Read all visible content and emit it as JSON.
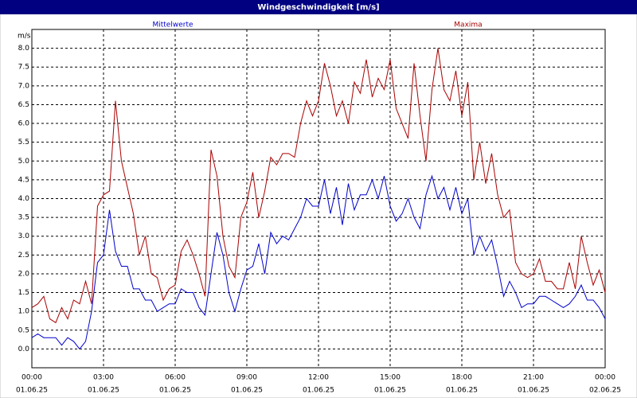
{
  "chart_data": {
    "type": "line",
    "title": "Windgeschwindigkeit [m/s]",
    "y_unit": "m/s",
    "x": [
      0,
      0.25,
      0.5,
      0.75,
      1,
      1.25,
      1.5,
      1.75,
      2,
      2.25,
      2.5,
      2.75,
      3,
      3.25,
      3.5,
      3.75,
      4,
      4.25,
      4.5,
      4.75,
      5,
      5.25,
      5.5,
      5.75,
      6,
      6.25,
      6.5,
      6.75,
      7,
      7.25,
      7.5,
      7.75,
      8,
      8.25,
      8.5,
      8.75,
      9,
      9.25,
      9.5,
      9.75,
      10,
      10.25,
      10.5,
      10.75,
      11,
      11.25,
      11.5,
      11.75,
      12,
      12.25,
      12.5,
      12.75,
      13,
      13.25,
      13.5,
      13.75,
      14,
      14.25,
      14.5,
      14.75,
      15,
      15.25,
      15.5,
      15.75,
      16,
      16.25,
      16.5,
      16.75,
      17,
      17.25,
      17.5,
      17.75,
      18,
      18.25,
      18.5,
      18.75,
      19,
      19.25,
      19.5,
      19.75,
      20,
      20.25,
      20.5,
      20.75,
      21,
      21.25,
      21.5,
      21.75,
      22,
      22.25,
      22.5,
      22.75,
      23,
      23.25,
      23.5,
      23.75,
      24
    ],
    "series": [
      {
        "name": "Mittelwerte",
        "color": "#0000cc",
        "values": [
          0.3,
          0.4,
          0.3,
          0.3,
          0.3,
          0.1,
          0.3,
          0.2,
          0.0,
          0.2,
          1.0,
          2.3,
          2.5,
          3.7,
          2.6,
          2.2,
          2.2,
          1.6,
          1.6,
          1.3,
          1.3,
          1.0,
          1.1,
          1.2,
          1.2,
          1.6,
          1.5,
          1.5,
          1.1,
          0.9,
          2.0,
          3.1,
          2.5,
          1.5,
          1.0,
          1.6,
          2.1,
          2.2,
          2.8,
          2.0,
          3.1,
          2.8,
          3.0,
          2.9,
          3.2,
          3.5,
          4.0,
          3.8,
          3.8,
          4.5,
          3.6,
          4.3,
          3.3,
          4.4,
          3.7,
          4.1,
          4.1,
          4.5,
          4.0,
          4.6,
          3.8,
          3.4,
          3.6,
          4.0,
          3.5,
          3.2,
          4.1,
          4.6,
          4.0,
          4.3,
          3.7,
          4.3,
          3.6,
          4.0,
          2.5,
          3.0,
          2.6,
          2.9,
          2.2,
          1.4,
          1.8,
          1.5,
          1.1,
          1.2,
          1.2,
          1.4,
          1.4,
          1.3,
          1.2,
          1.1,
          1.2,
          1.4,
          1.7,
          1.3,
          1.3,
          1.1,
          0.8
        ]
      },
      {
        "name": "Maxima",
        "color": "#aa0000",
        "values": [
          1.1,
          1.2,
          1.4,
          0.8,
          0.7,
          1.1,
          0.8,
          1.3,
          1.2,
          1.8,
          1.2,
          3.8,
          4.1,
          4.2,
          6.6,
          5.0,
          4.3,
          3.6,
          2.5,
          3.0,
          2.0,
          1.9,
          1.3,
          1.6,
          1.7,
          2.6,
          2.9,
          2.5,
          2.0,
          1.4,
          5.3,
          4.6,
          3.0,
          2.2,
          1.9,
          3.5,
          3.9,
          4.7,
          3.5,
          4.2,
          5.1,
          4.9,
          5.2,
          5.2,
          5.1,
          6.0,
          6.6,
          6.2,
          6.6,
          7.6,
          7.0,
          6.2,
          6.6,
          6.0,
          7.1,
          6.8,
          7.7,
          6.7,
          7.2,
          6.9,
          7.7,
          6.4,
          6.0,
          5.6,
          7.6,
          6.2,
          5.0,
          6.9,
          8.0,
          6.9,
          6.6,
          7.4,
          6.2,
          7.1,
          4.5,
          5.5,
          4.4,
          5.2,
          4.1,
          3.5,
          3.7,
          2.3,
          2.0,
          1.9,
          2.0,
          2.4,
          1.8,
          1.8,
          1.6,
          1.6,
          2.3,
          1.6,
          3.0,
          2.3,
          1.7,
          2.1,
          1.5
        ]
      }
    ],
    "xlim": [
      0,
      24
    ],
    "xticks": [
      {
        "value": 0,
        "label": "00:00"
      },
      {
        "value": 3,
        "label": "03:00"
      },
      {
        "value": 6,
        "label": "06:00"
      },
      {
        "value": 9,
        "label": "09:00"
      },
      {
        "value": 12,
        "label": "12:00"
      },
      {
        "value": 15,
        "label": "15:00"
      },
      {
        "value": 18,
        "label": "18:00"
      },
      {
        "value": 21,
        "label": "21:00"
      },
      {
        "value": 24,
        "label": "00:00"
      }
    ],
    "xtick_dates": [
      "01.06.25",
      "01.06.25",
      "01.06.25",
      "01.06.25",
      "01.06.25",
      "01.06.25",
      "01.06.25",
      "01.06.25",
      "02.06.25"
    ],
    "ylim": [
      -0.5,
      8.5
    ],
    "yticks": [
      {
        "value": 0,
        "label": "0.0"
      },
      0.5,
      {
        "value": 1,
        "label": "1.0"
      },
      1.5,
      {
        "value": 2,
        "label": "2.0"
      },
      2.5,
      {
        "value": 3,
        "label": "3.0"
      },
      3.5,
      {
        "value": 4,
        "label": "4.0"
      },
      4.5,
      {
        "value": 5,
        "label": "5.0"
      },
      5.5,
      {
        "value": 6,
        "label": "6.0"
      },
      6.5,
      {
        "value": 7,
        "label": "7.0"
      },
      7.5,
      {
        "value": 8,
        "label": "8.0"
      }
    ],
    "grid": true
  }
}
